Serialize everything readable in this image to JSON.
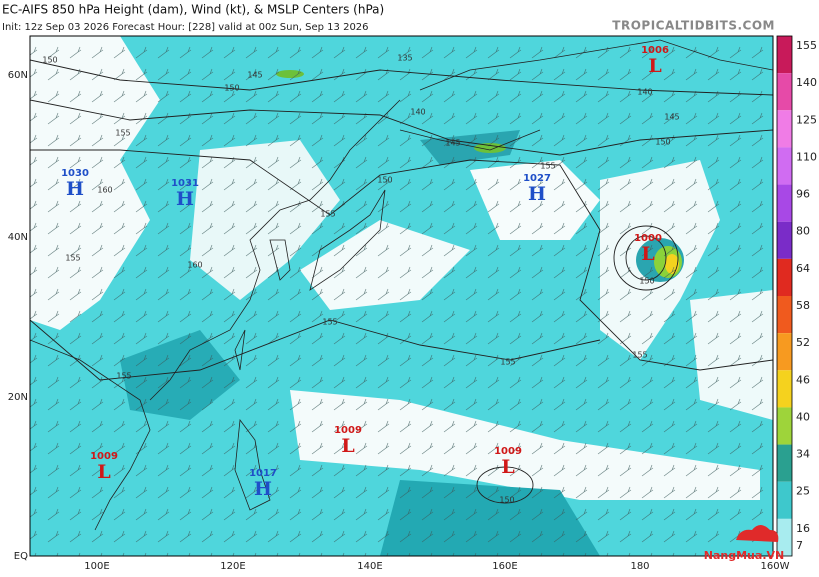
{
  "header": {
    "title": "EC-AIFS 850 hPa Height (dam), Wind (kt), & MSLP Centers (hPa)",
    "subtitle": "Init: 12z Sep 03 2026   Forecast Hour: [228]   valid at 00z Sun, Sep 13 2026",
    "site": "TROPICALTIDBITS.COM"
  },
  "map": {
    "lat_labels": [
      "60N",
      "40N",
      "20N",
      "EQ"
    ],
    "lon_labels": [
      "100E",
      "120E",
      "140E",
      "160E",
      "180",
      "160W"
    ],
    "centers": [
      {
        "label": "H",
        "value": 1030
      },
      {
        "label": "H",
        "value": 1031
      },
      {
        "label": "H",
        "value": 1027
      },
      {
        "label": "L",
        "value": 1006
      },
      {
        "label": "L",
        "value": 1000
      },
      {
        "label": "L",
        "value": 1009
      },
      {
        "label": "L",
        "value": 1009
      },
      {
        "label": "L",
        "value": 1009
      },
      {
        "label": "H",
        "value": 1017
      }
    ],
    "contour_labels": [
      150,
      145,
      150,
      135,
      140,
      145,
      150,
      155,
      155,
      160,
      155,
      160,
      155,
      155,
      155,
      155,
      150,
      140,
      145,
      150,
      150,
      155
    ]
  },
  "colorbar": {
    "labels": [
      155,
      140,
      125,
      110,
      96,
      80,
      64,
      58,
      52,
      46,
      40,
      34,
      25,
      16,
      7
    ]
  },
  "watermark": "NangMua.VN"
}
